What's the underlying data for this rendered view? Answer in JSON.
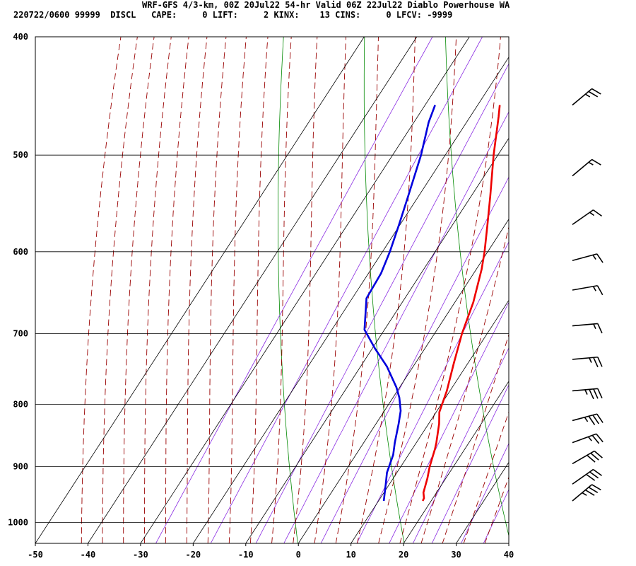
{
  "header": {
    "line1": "WRF-GFS 4/3-km, 00Z 20Jul22 54-hr Valid 06Z 22Jul22 Diablo Powerhouse WA",
    "line2": "220722/0600 99999  DISCL   CAPE:     0 LIFT:     2 KINX:    13 CINS:     0 LFCV: -9999"
  },
  "chart_data": {
    "type": "line",
    "title": "WRF-GFS 4/3-km, 00Z 20Jul22 54-hr Valid 06Z 22Jul22 Diablo Powerhouse WA",
    "xlabel": "",
    "ylabel": "",
    "xlim": [
      -50,
      40
    ],
    "ylim": [
      1040,
      400
    ],
    "y_scale": "log-pressure",
    "x_ticks": [
      -50,
      -40,
      -30,
      -20,
      -10,
      0,
      10,
      20,
      30,
      40
    ],
    "y_ticks": [
      400,
      500,
      600,
      700,
      800,
      900,
      1000
    ],
    "grid": true,
    "colors": {
      "temperature": "#ee0000",
      "dewpoint": "#0000dd",
      "dry_adiabat": "#008800",
      "moist_adiabat": "#990000",
      "mixing_ratio": "#8a2be2",
      "wind_barb": "#000000"
    },
    "series": [
      {
        "values": [
          {
            "p": 960,
            "t": 18.4
          },
          {
            "p": 955,
            "t": 18.3
          },
          {
            "p": 945,
            "t": 17.5
          },
          {
            "p": 920,
            "t": 16.5
          },
          {
            "p": 900,
            "t": 15.5
          },
          {
            "p": 870,
            "t": 14.3
          },
          {
            "p": 860,
            "t": 13.8
          },
          {
            "p": 830,
            "t": 12.0
          },
          {
            "p": 812,
            "t": 10.6
          },
          {
            "p": 780,
            "t": 9.4
          },
          {
            "p": 740,
            "t": 7.3
          },
          {
            "p": 700,
            "t": 5.2
          },
          {
            "p": 660,
            "t": 3.5
          },
          {
            "p": 620,
            "t": 1.0
          },
          {
            "p": 600,
            "t": -0.6
          },
          {
            "p": 570,
            "t": -3.4
          },
          {
            "p": 540,
            "t": -6.4
          },
          {
            "p": 500,
            "t": -10.8
          },
          {
            "p": 465,
            "t": -14.6
          },
          {
            "p": 455,
            "t": -15.8
          }
        ]
      },
      {
        "values": [
          {
            "p": 960,
            "t": 11.0
          },
          {
            "p": 930,
            "t": 9.3
          },
          {
            "p": 910,
            "t": 8.1
          },
          {
            "p": 880,
            "t": 7.1
          },
          {
            "p": 860,
            "t": 5.9
          },
          {
            "p": 830,
            "t": 4.3
          },
          {
            "p": 810,
            "t": 3.1
          },
          {
            "p": 790,
            "t": 1.2
          },
          {
            "p": 775,
            "t": -0.6
          },
          {
            "p": 745,
            "t": -5.0
          },
          {
            "p": 720,
            "t": -9.5
          },
          {
            "p": 695,
            "t": -13.8
          },
          {
            "p": 655,
            "t": -17.3
          },
          {
            "p": 625,
            "t": -17.6
          },
          {
            "p": 600,
            "t": -18.6
          },
          {
            "p": 570,
            "t": -20.2
          },
          {
            "p": 540,
            "t": -22.0
          },
          {
            "p": 500,
            "t": -24.6
          },
          {
            "p": 470,
            "t": -27.2
          },
          {
            "p": 455,
            "t": -28.1
          }
        ]
      }
    ],
    "wind_barbs": [
      {
        "p": 455,
        "dir": 230,
        "kt": 25
      },
      {
        "p": 520,
        "dir": 230,
        "kt": 15
      },
      {
        "p": 570,
        "dir": 235,
        "kt": 15
      },
      {
        "p": 610,
        "dir": 255,
        "kt": 15
      },
      {
        "p": 645,
        "dir": 260,
        "kt": 15
      },
      {
        "p": 690,
        "dir": 265,
        "kt": 15
      },
      {
        "p": 735,
        "dir": 265,
        "kt": 25
      },
      {
        "p": 780,
        "dir": 265,
        "kt": 35
      },
      {
        "p": 825,
        "dir": 255,
        "kt": 35
      },
      {
        "p": 860,
        "dir": 250,
        "kt": 25
      },
      {
        "p": 895,
        "dir": 240,
        "kt": 30
      },
      {
        "p": 930,
        "dir": 235,
        "kt": 30
      },
      {
        "p": 960,
        "dir": 230,
        "kt": 35
      }
    ]
  }
}
